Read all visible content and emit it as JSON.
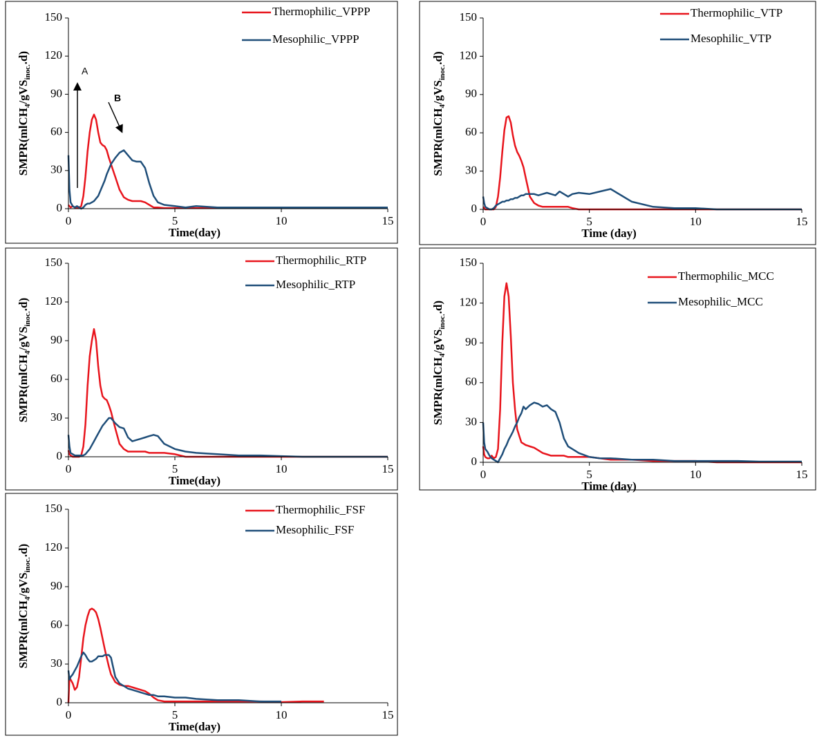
{
  "chart_data": [
    {
      "type": "line",
      "legend": "upper right",
      "xlim": [
        0,
        15
      ],
      "ylim": [
        0,
        150
      ],
      "xticks": [
        0,
        5,
        10,
        15
      ],
      "yticks": [
        0,
        30,
        60,
        90,
        120,
        150
      ],
      "xlabel": "Time(day)",
      "ylabel": [
        "SMPR(mlCH",
        "4",
        "/gVS",
        "inoc.",
        ".d)"
      ],
      "annotations": [
        "A",
        "B"
      ],
      "x": [
        0,
        0.05,
        0.1,
        0.2,
        0.3,
        0.4,
        0.5,
        0.6,
        0.7,
        0.8,
        0.9,
        1.0,
        1.1,
        1.2,
        1.3,
        1.4,
        1.5,
        1.6,
        1.7,
        1.8,
        1.9,
        2.0,
        2.2,
        2.4,
        2.6,
        2.8,
        3.0,
        3.2,
        3.4,
        3.6,
        3.8,
        4.0,
        4.2,
        4.5,
        5,
        5.5,
        6,
        7,
        8,
        9,
        10,
        11,
        12,
        13,
        14,
        15
      ],
      "series": [
        {
          "name": "Thermophilic_VPPP",
          "color": "#e8141c",
          "values": [
            3,
            2,
            1,
            2,
            1,
            1,
            1,
            2,
            10,
            25,
            45,
            60,
            70,
            74,
            70,
            60,
            52,
            50,
            49,
            46,
            40,
            35,
            25,
            15,
            9,
            7,
            6,
            6,
            6,
            5,
            3,
            1,
            1,
            0.5,
            0.5,
            0.5,
            0.5,
            0.5,
            0.5,
            0.5,
            0.5,
            0.5,
            0.5,
            0.5,
            0.5,
            0.5
          ]
        },
        {
          "name": "Mesophilic_VPPP",
          "color": "#1f4e79",
          "values": [
            42,
            15,
            5,
            2,
            1,
            2,
            1,
            0,
            1,
            3,
            4,
            4,
            5,
            6,
            8,
            10,
            14,
            18,
            22,
            27,
            31,
            35,
            40,
            44,
            46,
            42,
            38,
            37,
            37,
            32,
            20,
            10,
            5,
            3,
            2,
            1,
            2,
            1,
            1,
            1,
            1,
            1,
            1,
            1,
            1,
            1
          ]
        }
      ]
    },
    {
      "type": "line",
      "legend": "upper right",
      "xlim": [
        0,
        15
      ],
      "ylim": [
        0,
        150
      ],
      "xticks": [
        0,
        5,
        10,
        15
      ],
      "yticks": [
        0,
        30,
        60,
        90,
        120,
        150
      ],
      "xlabel": "Time (day)",
      "ylabel": [
        "SMPR(mlCH",
        "4",
        "/gVS",
        "inoc.",
        ".d)"
      ],
      "x": [
        0,
        0.05,
        0.1,
        0.2,
        0.3,
        0.4,
        0.5,
        0.6,
        0.7,
        0.8,
        0.9,
        1.0,
        1.1,
        1.2,
        1.3,
        1.4,
        1.5,
        1.6,
        1.7,
        1.8,
        1.9,
        2.0,
        2.2,
        2.4,
        2.6,
        2.8,
        3.0,
        3.2,
        3.4,
        3.6,
        3.8,
        4.0,
        4.2,
        4.5,
        5,
        5.5,
        6,
        7,
        8,
        9,
        10,
        11,
        12,
        13,
        14,
        15
      ],
      "series": [
        {
          "name": "Thermophilic_VTP",
          "color": "#e8141c",
          "values": [
            2,
            1,
            0,
            0,
            0,
            0,
            0,
            2,
            10,
            25,
            45,
            62,
            72,
            73,
            68,
            58,
            50,
            45,
            42,
            38,
            33,
            25,
            10,
            5,
            3,
            2,
            2,
            2,
            2,
            2,
            2,
            2,
            1,
            0,
            0,
            0,
            0,
            0,
            0,
            0,
            0,
            0,
            0,
            0,
            0,
            0
          ]
        },
        {
          "name": "Mesophilic_VTP",
          "color": "#1f4e79",
          "values": [
            10,
            5,
            2,
            1,
            0,
            0,
            1,
            3,
            4,
            5,
            6,
            6,
            7,
            7,
            8,
            8,
            9,
            9,
            10,
            11,
            11,
            12,
            12,
            12,
            11,
            12,
            13,
            12,
            11,
            14,
            12,
            10,
            12,
            13,
            12,
            14,
            16,
            6,
            2,
            1,
            1,
            0,
            0,
            0,
            0,
            0
          ]
        }
      ]
    },
    {
      "type": "line",
      "legend": "upper right",
      "xlim": [
        0,
        15
      ],
      "ylim": [
        0,
        150
      ],
      "xticks": [
        0,
        5,
        10,
        15
      ],
      "yticks": [
        0,
        30,
        60,
        90,
        120,
        150
      ],
      "xlabel": "Time(day)",
      "ylabel": [
        "SMPR(mlCH",
        "4",
        "/gVS",
        "inoc.",
        ".d)"
      ],
      "x": [
        0,
        0.05,
        0.1,
        0.2,
        0.3,
        0.4,
        0.5,
        0.6,
        0.7,
        0.8,
        0.9,
        1.0,
        1.1,
        1.2,
        1.3,
        1.4,
        1.5,
        1.6,
        1.7,
        1.8,
        1.9,
        2.0,
        2.2,
        2.4,
        2.6,
        2.8,
        3.0,
        3.2,
        3.4,
        3.6,
        3.8,
        4.0,
        4.2,
        4.5,
        5,
        5.5,
        6,
        7,
        8,
        9,
        10,
        11,
        12,
        13,
        14,
        15
      ],
      "series": [
        {
          "name": "Thermophilic_RTP",
          "color": "#e8141c",
          "values": [
            5,
            2,
            1,
            0,
            0,
            0,
            0,
            1,
            8,
            25,
            55,
            78,
            90,
            99,
            90,
            70,
            55,
            47,
            45,
            44,
            40,
            35,
            22,
            10,
            6,
            4,
            4,
            4,
            4,
            4,
            3,
            3,
            3,
            3,
            2,
            0,
            0,
            0,
            0,
            0,
            0,
            0,
            0,
            0,
            0,
            0
          ]
        },
        {
          "name": "Mesophilic_RTP",
          "color": "#1f4e79",
          "values": [
            17,
            8,
            3,
            2,
            1,
            1,
            1,
            1,
            1,
            2,
            4,
            6,
            9,
            12,
            15,
            18,
            21,
            24,
            26,
            28,
            30,
            30,
            26,
            23,
            22,
            15,
            12,
            13,
            14,
            15,
            16,
            17,
            16,
            10,
            6,
            4,
            3,
            2,
            1,
            1,
            0.5,
            0,
            0,
            0,
            0,
            0
          ]
        }
      ]
    },
    {
      "type": "line",
      "legend": "upper right",
      "xlim": [
        0,
        15
      ],
      "ylim": [
        0,
        150
      ],
      "xticks": [
        0,
        5,
        10,
        15
      ],
      "yticks": [
        0,
        30,
        60,
        90,
        120,
        150
      ],
      "xlabel": "Time (day)",
      "ylabel": [
        "SMPR(mlCH",
        "4",
        "/gVS",
        "inoc.",
        ".d)"
      ],
      "x": [
        0,
        0.05,
        0.1,
        0.2,
        0.3,
        0.4,
        0.5,
        0.6,
        0.7,
        0.8,
        0.9,
        1.0,
        1.1,
        1.2,
        1.3,
        1.4,
        1.5,
        1.6,
        1.7,
        1.8,
        1.9,
        2.0,
        2.2,
        2.4,
        2.6,
        2.8,
        3.0,
        3.2,
        3.4,
        3.6,
        3.8,
        4.0,
        4.2,
        4.5,
        5,
        5.5,
        6,
        7,
        8,
        9,
        10,
        11,
        12,
        13,
        14,
        15
      ],
      "series": [
        {
          "name": "Thermophilic_MCC",
          "color": "#e8141c",
          "values": [
            12,
            6,
            4,
            3,
            3,
            5,
            3,
            4,
            10,
            40,
            90,
            125,
            135,
            125,
            95,
            60,
            40,
            25,
            20,
            15,
            14,
            13,
            12,
            11,
            9,
            7,
            6,
            5,
            5,
            5,
            5,
            4,
            4,
            4,
            4,
            3,
            2,
            2,
            1,
            1,
            1,
            0,
            0,
            0,
            0,
            0
          ]
        },
        {
          "name": "Mesophilic_MCC",
          "color": "#1f4e79",
          "values": [
            30,
            15,
            10,
            8,
            5,
            3,
            2,
            1,
            0,
            3,
            6,
            10,
            13,
            17,
            20,
            23,
            27,
            30,
            34,
            37,
            42,
            40,
            43,
            45,
            44,
            42,
            43,
            40,
            38,
            30,
            18,
            12,
            10,
            7,
            4,
            3,
            3,
            2,
            2,
            1,
            1,
            1,
            1,
            0.5,
            0.5,
            0.5
          ]
        }
      ]
    },
    {
      "type": "line",
      "legend": "upper right",
      "xlim": [
        0,
        15
      ],
      "ylim": [
        0,
        150
      ],
      "xticks": [
        0,
        5,
        10,
        15
      ],
      "yticks": [
        0,
        30,
        60,
        90,
        120,
        150
      ],
      "xlabel": "Time(day)",
      "ylabel": [
        "SMPR(mlCH",
        "4",
        "/gVS",
        "inoc.",
        ".d)"
      ],
      "x": [
        0,
        0.05,
        0.1,
        0.2,
        0.3,
        0.4,
        0.5,
        0.6,
        0.7,
        0.8,
        0.9,
        1.0,
        1.1,
        1.2,
        1.3,
        1.4,
        1.5,
        1.6,
        1.7,
        1.8,
        1.9,
        2.0,
        2.2,
        2.4,
        2.6,
        2.8,
        3.0,
        3.2,
        3.4,
        3.6,
        3.8,
        4.0,
        4.2,
        4.5,
        5,
        5.5,
        6,
        7,
        8,
        9,
        10,
        11,
        12,
        13,
        14,
        15
      ],
      "series": [
        {
          "name": "Thermophilic_FSF",
          "color": "#e8141c",
          "values": [
            0,
            20,
            18,
            15,
            10,
            12,
            20,
            35,
            50,
            60,
            67,
            72,
            73,
            72,
            70,
            65,
            58,
            50,
            42,
            35,
            28,
            22,
            16,
            14,
            13,
            13,
            12,
            11,
            10,
            9,
            7,
            4,
            2,
            1,
            1,
            1,
            1,
            1,
            1,
            1,
            0.5,
            1,
            1,
            null,
            null,
            null
          ]
        },
        {
          "name": "Mesophilic_FSF",
          "color": "#1f4e79",
          "values": [
            25,
            18,
            20,
            22,
            25,
            28,
            32,
            36,
            39,
            37,
            34,
            32,
            32,
            33,
            34,
            36,
            36,
            36,
            37,
            37,
            37,
            35,
            20,
            15,
            13,
            11,
            10,
            9,
            8,
            7,
            6,
            6,
            5,
            5,
            4,
            4,
            3,
            2,
            2,
            1,
            1,
            null,
            null,
            null,
            null,
            null
          ]
        }
      ]
    }
  ]
}
